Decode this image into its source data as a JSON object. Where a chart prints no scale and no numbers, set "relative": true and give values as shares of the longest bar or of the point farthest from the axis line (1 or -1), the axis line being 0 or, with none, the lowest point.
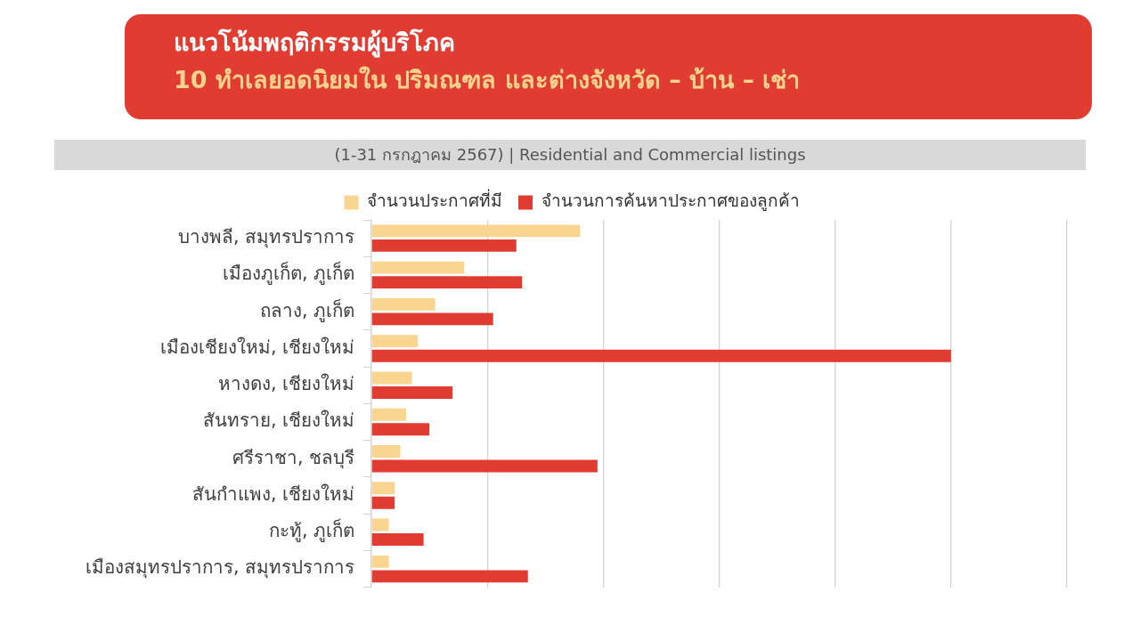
{
  "chart_data": {
    "type": "bar",
    "orientation": "horizontal",
    "relative": true,
    "title": "แนวโน้มพฤติกรรมผู้บริโภค",
    "subtitle": "10 ทำเลยอดนิยมใน ปริมณฑล และต่างจังหวัด – บ้าน – เช่า",
    "annotations": [
      "(1-31 กรกฎาคม 2567) | Residential and Commercial listings"
    ],
    "categories": [
      "บางพลี, สมุทรปราการ",
      "เมืองภูเก็ต, ภูเก็ต",
      "ถลาง, ภูเก็ต",
      "เมืองเชียงใหม่, เชียงใหม่",
      "หางดง, เชียงใหม่",
      "สันทราย, เชียงใหม่",
      "ศรีราชา, ชลบุรี",
      "สันกำแพง, เชียงใหม่",
      "กะทู้, ภูเก็ต",
      "เมืองสมุทรปราการ, สมุทรปราการ"
    ],
    "series": [
      {
        "name": "จำนวนประกาศที่มี",
        "color": "#fad590",
        "values": [
          0.36,
          0.16,
          0.11,
          0.08,
          0.07,
          0.06,
          0.05,
          0.04,
          0.03,
          0.03
        ]
      },
      {
        "name": "จำนวนการค้นหาประกาศของลูกค้า",
        "color": "#e03c31",
        "values": [
          0.25,
          0.26,
          0.21,
          1.0,
          0.14,
          0.1,
          0.39,
          0.04,
          0.09,
          0.27
        ]
      }
    ],
    "grid": "x",
    "legend": "top"
  }
}
